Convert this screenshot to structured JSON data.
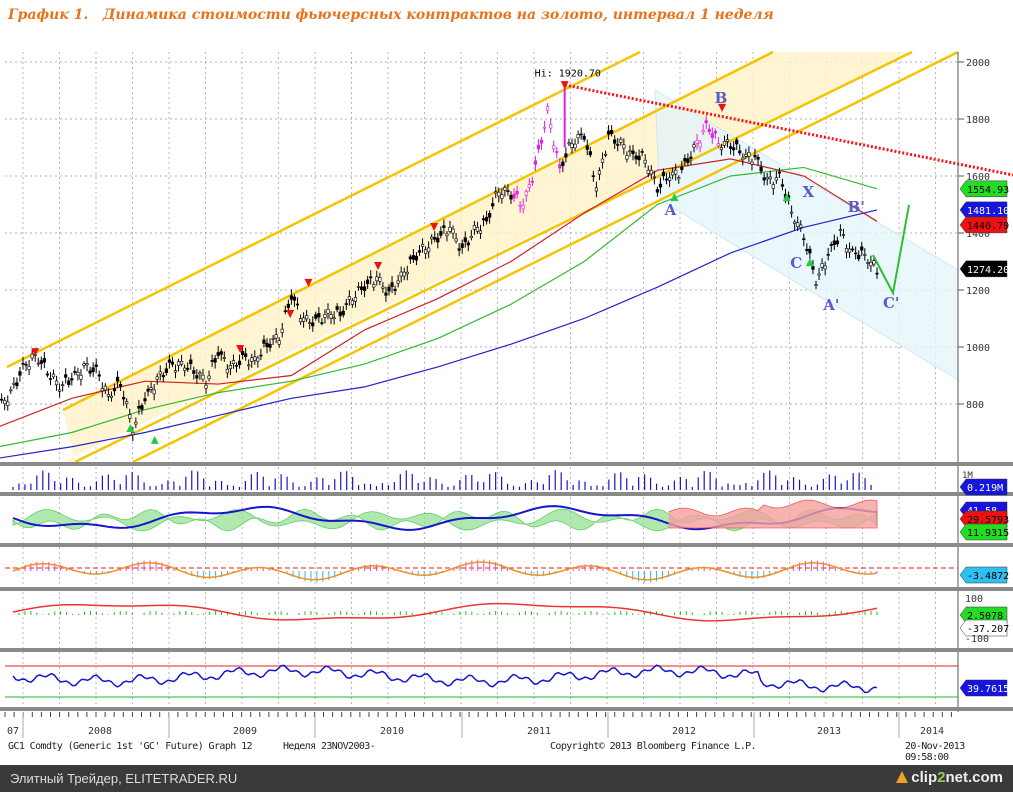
{
  "title": "График 1.   Динамика стоимости фьючерсных контрактов на золото, интервал 1 неделя",
  "footer": {
    "security": "GC1 Comdty (Generic 1st 'GC' Future) Graph 12",
    "period": "Неделя 23NOV2003-",
    "copyright": "Copyright© 2013 Bloomberg Finance L.P.",
    "timestamp": "20-Nov-2013 09:58:00"
  },
  "bottom_bar": {
    "site": "Элитный Трейдер, ELITETRADER.RU",
    "logo_a": "clip",
    "logo_b": "2",
    "logo_c": "net.com"
  },
  "colors": {
    "accent": "#e8731a",
    "price": "#000000",
    "ma_blue": "#2222cc",
    "ma_red": "#cc2222",
    "ma_green": "#33bb33",
    "channel": "#f5c400",
    "trend": "#ff0000"
  },
  "chart_data": {
    "type": "line",
    "title": "GC1 Comdty weekly",
    "x_start": "2007-11",
    "x_step": "month",
    "xticks": [
      "07",
      "2008",
      "2009",
      "2010",
      "2011",
      "2012",
      "2013",
      "2014"
    ],
    "yticks": [
      2000,
      1800,
      1600,
      1400,
      1200,
      1000,
      800
    ],
    "ylim": [
      700,
      2050
    ],
    "close": [
      790,
      834,
      924,
      972,
      916,
      866,
      887,
      928,
      914,
      829,
      874,
      718,
      817,
      884,
      928,
      942,
      917,
      884,
      979,
      927,
      955,
      955,
      1008,
      1040,
      1179,
      1097,
      1083,
      1119,
      1113,
      1180,
      1212,
      1244,
      1180,
      1248,
      1308,
      1357,
      1384,
      1421,
      1334,
      1410,
      1439,
      1557,
      1536,
      1502,
      1628,
      1826,
      1622,
      1724,
      1746,
      1566,
      1737,
      1711,
      1669,
      1664,
      1561,
      1604,
      1615,
      1692,
      1775,
      1719,
      1714,
      1676,
      1663,
      1578,
      1596,
      1476,
      1393,
      1234,
      1322,
      1396,
      1327,
      1324,
      1274
    ],
    "ma_step": 6,
    "series": [
      {
        "name": "MA green",
        "color": "#33bb33",
        "values": [
          650,
          700,
          780,
          840,
          880,
          940,
          1030,
          1150,
          1300,
          1500,
          1600,
          1630,
          1555
        ],
        "last_label": "1554.93"
      },
      {
        "name": "MA blue",
        "color": "#2222cc",
        "values": [
          610,
          650,
          700,
          760,
          820,
          860,
          930,
          1010,
          1100,
          1210,
          1330,
          1420,
          1481
        ],
        "last_label": "1481.10"
      },
      {
        "name": "MA red",
        "color": "#cc2222",
        "values": [
          720,
          820,
          880,
          870,
          900,
          1060,
          1170,
          1300,
          1470,
          1620,
          1660,
          1600,
          1441
        ],
        "last_label": "1440.79"
      }
    ],
    "last_price": {
      "value": 1274.2,
      "label": "1274.20"
    },
    "high_annotation": {
      "index": 46.4,
      "value": 1920.7,
      "label": "Hi: 1920.70"
    },
    "signals_down": [
      [
        3.0,
        982
      ],
      [
        19.8,
        993
      ],
      [
        23.9,
        1116
      ],
      [
        25.4,
        1225
      ],
      [
        31.1,
        1284
      ],
      [
        35.7,
        1421
      ],
      [
        46.4,
        1919
      ],
      [
        59.3,
        1839
      ]
    ],
    "signals_up": [
      [
        10.8,
        716
      ],
      [
        12.8,
        674
      ],
      [
        55.4,
        1526
      ],
      [
        64.6,
        1526
      ],
      [
        66.5,
        1298
      ]
    ],
    "wave_labels": [
      {
        "label": "A",
        "index": 55,
        "value": 1463
      },
      {
        "label": "B",
        "index": 59.1,
        "value": 1856
      },
      {
        "label": "X",
        "index": 66.3,
        "value": 1526
      },
      {
        "label": "C",
        "index": 65.3,
        "value": 1277
      },
      {
        "label": "A'",
        "index": 68,
        "value": 1130
      },
      {
        "label": "B'",
        "index": 70,
        "value": 1474
      },
      {
        "label": "C'",
        "index": 72.9,
        "value": 1137
      }
    ],
    "indicators": {
      "volume": {
        "tick": "1M",
        "last": "0.219M"
      },
      "dmi": {
        "adx": "41.58",
        "di_minus": "29.5793",
        "di_plus": "11.9315"
      },
      "macd": {
        "last": "-3.4872"
      },
      "osc": {
        "top": "100",
        "bottom": "-100",
        "pos": "2.5078",
        "neg": "-37.207"
      },
      "rsi": {
        "last": "39.7615"
      }
    }
  }
}
